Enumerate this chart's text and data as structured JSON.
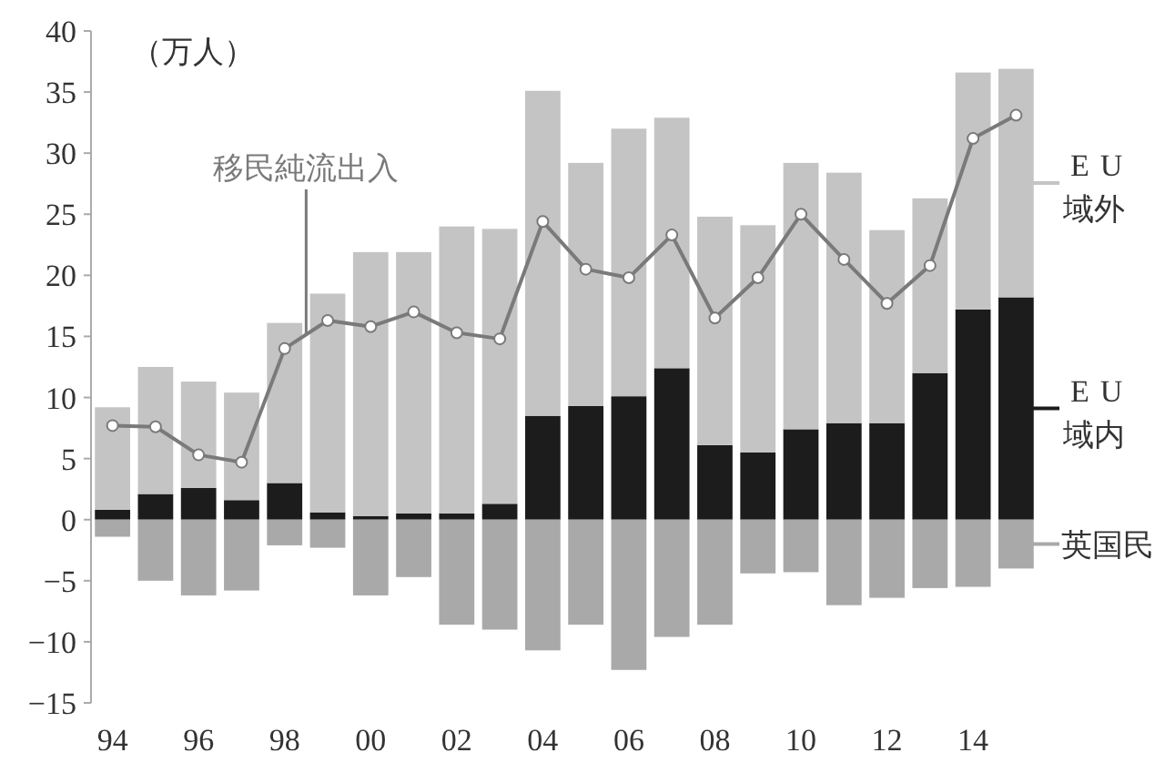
{
  "chart_data": {
    "type": "bar",
    "stacked": true,
    "legend": "right",
    "grid": false,
    "annotations": [
      "（万人）"
    ],
    "categories": [
      "94",
      null,
      "96",
      null,
      "98",
      null,
      "00",
      null,
      "02",
      null,
      "04",
      null,
      "06",
      null,
      "08",
      null,
      "10",
      null,
      "12",
      null,
      "14",
      null
    ],
    "ylim": [
      -15,
      40
    ],
    "yticks": [
      -15,
      -10,
      -5,
      0,
      5,
      10,
      15,
      20,
      25,
      30,
      35,
      40
    ],
    "series": [
      {
        "name": "EU域内",
        "color": "#1c1c1c",
        "values": [
          0.8,
          2.1,
          2.6,
          1.6,
          3.0,
          0.6,
          0.3,
          0.5,
          0.5,
          1.3,
          8.5,
          9.3,
          10.1,
          12.4,
          6.1,
          5.5,
          7.4,
          7.9,
          7.9,
          12.0,
          17.2,
          18.2
        ]
      },
      {
        "name": "EU域外",
        "color": "#c4c4c4",
        "values": [
          8.4,
          10.4,
          8.7,
          8.8,
          13.1,
          17.9,
          21.6,
          21.4,
          23.5,
          22.5,
          26.6,
          19.9,
          21.9,
          20.5,
          18.7,
          18.6,
          21.8,
          20.5,
          15.8,
          14.3,
          19.4,
          18.7
        ]
      },
      {
        "name": "英国民",
        "color": "#a9a9a9",
        "values": [
          -1.4,
          -5.0,
          -6.2,
          -5.8,
          -2.1,
          -2.3,
          -6.2,
          -4.7,
          -8.6,
          -9.0,
          -10.7,
          -8.6,
          -12.3,
          -9.6,
          -8.6,
          -4.4,
          -4.3,
          -7.0,
          -6.4,
          -5.6,
          -5.5,
          -4.0
        ]
      },
      {
        "name": "移民純流出入",
        "type": "line",
        "color": "#7a7a7a",
        "marker": "circle",
        "values": [
          7.7,
          7.6,
          5.3,
          4.7,
          14.0,
          16.3,
          15.8,
          17.0,
          15.3,
          14.8,
          24.4,
          20.5,
          19.8,
          23.3,
          16.5,
          19.8,
          25.0,
          21.3,
          17.7,
          20.8,
          31.2,
          33.1
        ]
      }
    ]
  }
}
